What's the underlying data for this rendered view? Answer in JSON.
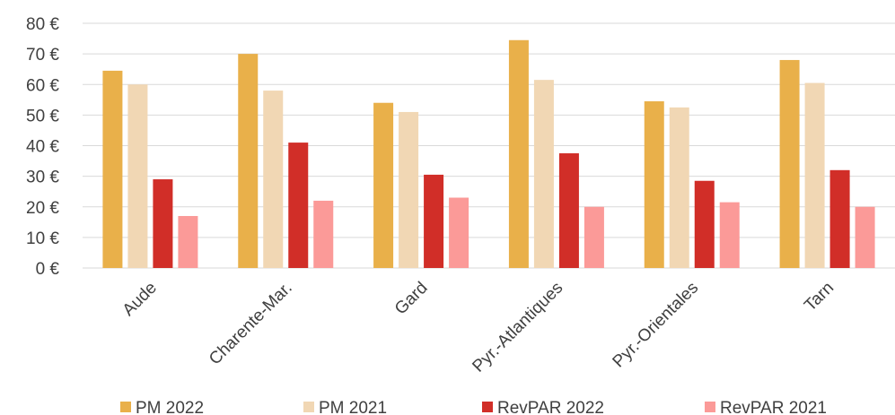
{
  "chart_data": {
    "type": "bar",
    "categories": [
      "Aude",
      "Charente-Mar.",
      "Gard",
      "Pyr.-Atlantiques",
      "Pyr.-Orientales",
      "Tarn"
    ],
    "series": [
      {
        "name": "PM 2022",
        "values": [
          64.5,
          70,
          54,
          74.5,
          54.5,
          68
        ],
        "color": "#E9B04A"
      },
      {
        "name": "PM 2021",
        "values": [
          60,
          58,
          51,
          61.5,
          52.5,
          60.5
        ],
        "color": "#F1D7B4"
      },
      {
        "name": "RevPAR 2022",
        "values": [
          29,
          41,
          30.5,
          37.5,
          28.5,
          32
        ],
        "color": "#D12E28"
      },
      {
        "name": "RevPAR 2021",
        "values": [
          17,
          22,
          23,
          20,
          21.5,
          20
        ],
        "color": "#FB9A98"
      }
    ],
    "yticks": [
      "0 €",
      "10 €",
      "20 €",
      "30 €",
      "40 €",
      "50 €",
      "60 €",
      "70 €",
      "80 €"
    ],
    "ylim": [
      0,
      80
    ],
    "grid": true,
    "legend_position": "bottom"
  }
}
